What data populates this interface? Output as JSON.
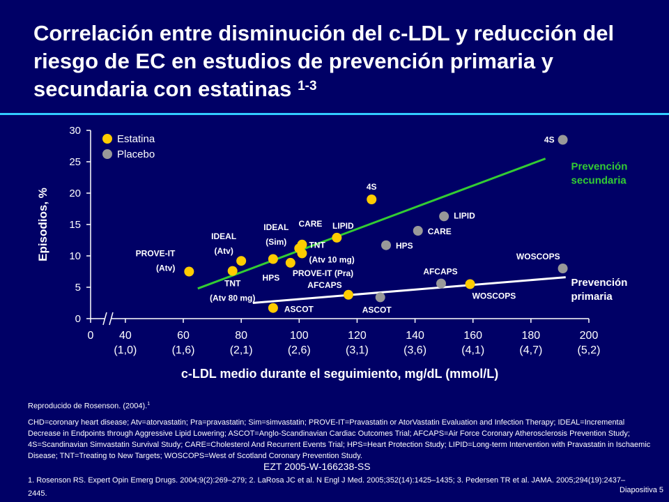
{
  "title": {
    "text": "Correlación entre disminución del c-LDL y reducción del riesgo de EC en estudios de prevención primaria y secundaria con estatinas",
    "superscript": "1-3"
  },
  "chart_data": {
    "type": "scatter",
    "xlabel": "c-LDL medio durante el seguimiento, mg/dL (mmol/L)",
    "ylabel": "Episodios, %",
    "xlim": [
      28,
      200
    ],
    "ylim": [
      0,
      30
    ],
    "x_axis_break": true,
    "x_ticks": [
      {
        "value": 28,
        "label": "0",
        "sub": ""
      },
      {
        "value": 40,
        "label": "40",
        "sub": "(1,0)"
      },
      {
        "value": 60,
        "label": "60",
        "sub": "(1,6)"
      },
      {
        "value": 80,
        "label": "80",
        "sub": "(2,1)"
      },
      {
        "value": 100,
        "label": "100",
        "sub": "(2,6)"
      },
      {
        "value": 120,
        "label": "120",
        "sub": "(3,1)"
      },
      {
        "value": 140,
        "label": "140",
        "sub": "(3,6)"
      },
      {
        "value": 160,
        "label": "160",
        "sub": "(4,1)"
      },
      {
        "value": 180,
        "label": "180",
        "sub": "(4,7)"
      },
      {
        "value": 200,
        "label": "200",
        "sub": "(5,2)"
      }
    ],
    "y_ticks": [
      0,
      5,
      10,
      15,
      20,
      25,
      30
    ],
    "grid": false,
    "legend_position": "top-left",
    "series": [
      {
        "name": "Estatina",
        "color": "#ffcc00",
        "points": [
          {
            "x": 62,
            "y": 7.5,
            "label": [
              "PROVE-IT",
              "(Atv)"
            ],
            "anchor": "end",
            "ldx": -20,
            "ldy": -22
          },
          {
            "x": 77,
            "y": 7.6,
            "label": [
              "TNT",
              "(Atv 80 mg)"
            ],
            "anchor": "middle",
            "ldx": 0,
            "ldy": 22
          },
          {
            "x": 80,
            "y": 9.2,
            "label": [
              "IDEAL",
              "(Atv)"
            ],
            "anchor": "middle",
            "ldx": -25,
            "ldy": -31
          },
          {
            "x": 91,
            "y": 1.7,
            "label": [
              "ASCOT"
            ],
            "anchor": "start",
            "ldx": 16,
            "ldy": 6
          },
          {
            "x": 91,
            "y": 9.5,
            "label": [
              "HPS"
            ],
            "anchor": "middle",
            "ldx": -3,
            "ldy": 31
          },
          {
            "x": 97,
            "y": 8.9,
            "label": [
              "PROVE-IT (Pra)"
            ],
            "anchor": "start",
            "ldx": 3,
            "ldy": 19
          },
          {
            "x": 101,
            "y": 11.8,
            "label": [
              "CARE"
            ],
            "anchor": "middle",
            "ldx": 12,
            "ldy": -26
          },
          {
            "x": 101,
            "y": 10.4,
            "label": [
              "TNT",
              "(Atv 10 mg)"
            ],
            "anchor": "start",
            "ldx": 10,
            "ldy": -8
          },
          {
            "x": 100,
            "y": 11.2,
            "label": [
              "IDEAL",
              "(Sim)"
            ],
            "anchor": "middle",
            "ldx": -33,
            "ldy": -26
          },
          {
            "x": 113,
            "y": 12.9,
            "label": [
              "LIPID"
            ],
            "anchor": "middle",
            "ldx": 9,
            "ldy": -13
          },
          {
            "x": 117,
            "y": 3.8,
            "label": [
              "AFCAPS"
            ],
            "anchor": "middle",
            "ldx": -34,
            "ldy": -10
          },
          {
            "x": 125,
            "y": 19.0,
            "label": [
              "4S"
            ],
            "anchor": "middle",
            "ldx": 0,
            "ldy": -14
          },
          {
            "x": 159,
            "y": 5.5,
            "label": [
              "WOSCOPS"
            ],
            "anchor": "start",
            "ldx": 3,
            "ldy": 21
          }
        ]
      },
      {
        "name": "Placebo",
        "color": "#999999",
        "points": [
          {
            "x": 128,
            "y": 3.4,
            "label": [
              "ASCOT"
            ],
            "anchor": "middle",
            "ldx": -5,
            "ldy": 22
          },
          {
            "x": 130,
            "y": 11.7,
            "label": [
              "HPS"
            ],
            "anchor": "start",
            "ldx": 14,
            "ldy": 5
          },
          {
            "x": 141,
            "y": 14.0,
            "label": [
              "CARE"
            ],
            "anchor": "start",
            "ldx": 14,
            "ldy": 5
          },
          {
            "x": 149,
            "y": 5.6,
            "label": [
              "AFCAPS"
            ],
            "anchor": "middle",
            "ldx": -1,
            "ldy": -13
          },
          {
            "x": 150,
            "y": 16.3,
            "label": [
              "LIPID"
            ],
            "anchor": "start",
            "ldx": 14,
            "ldy": 3
          },
          {
            "x": 191,
            "y": 8.0,
            "label": [
              "WOSCOPS"
            ],
            "anchor": "end",
            "ldx": -4,
            "ldy": -13
          },
          {
            "x": 191,
            "y": 28.5,
            "label": [
              "4S"
            ],
            "anchor": "end",
            "ldx": -12,
            "ldy": 4
          }
        ]
      }
    ],
    "trend_lines": [
      {
        "name": "Prevención secundaria",
        "label": [
          "Prevención",
          "secundaria"
        ],
        "label_color": "#33cc33",
        "color": "#33cc33",
        "x1": 65,
        "y1": 4.8,
        "x2": 185,
        "y2": 25.5,
        "lx": 197,
        "ly": 23.7
      },
      {
        "name": "Prevención primaria",
        "label": [
          "Prevención",
          "primaria"
        ],
        "label_color": "#ffffff",
        "color": "#ffffff",
        "x1": 84,
        "y1": 2.5,
        "x2": 192,
        "y2": 6.6,
        "lx": 197,
        "ly": 5.2
      }
    ]
  },
  "footer": {
    "source": "Reproducido de Rosenson. (2004).",
    "source_sup": "1",
    "abbreviations": "CHD=coronary heart disease; Atv=atorvastatin; Pra=pravastatin; Sim=simvastatin; PROVE-IT=Pravastatin or AtorVastatin Evaluation and Infection Therapy; IDEAL=Incremental Decrease in Endpoints through Aggressive Lipid Lowering; ASCOT=Anglo-Scandinavian Cardiac Outcomes Trial; AFCAPS=Air Force Coronary Atherosclerosis Prevention Study; 4S=Scandinavian Simvastatin Survival Study; CARE=Cholesterol And Recurrent Events Trial; HPS=Heart Protection Study; LIPID=Long-term Intervention with Pravastatin in Ischaemic Disease; TNT=Treating to New Targets; WOSCOPS=West of Scotland Coronary Prevention Study.",
    "code": "EZT 2005-W-166238-SS",
    "references": "1. Rosenson RS. Expert Opin Emerg Drugs. 2004;9(2):269–279; 2. LaRosa JC et al. N Engl J Med. 2005;352(14):1425–1435; 3. Pedersen TR et al. JAMA. 2005;294(19):2437–2445.",
    "slide_number": "Diapositiva 5"
  }
}
